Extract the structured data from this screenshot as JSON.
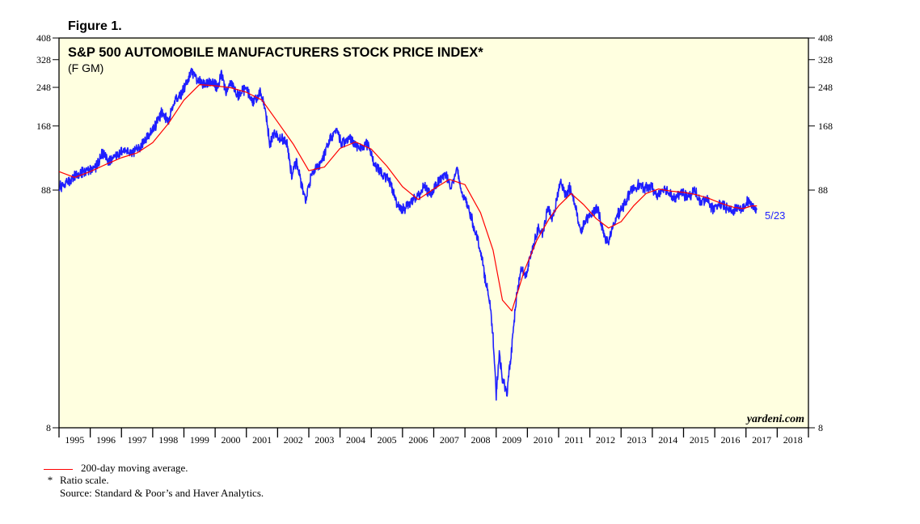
{
  "figure_label": "Figure 1.",
  "chart_data": {
    "type": "line",
    "title": "S&P 500 AUTOMOBILE MANUFACTURERS STOCK PRICE INDEX*",
    "subtitle": "(F GM)",
    "scale": "log",
    "ylim": [
      8,
      408
    ],
    "yticks": [
      8,
      88,
      168,
      248,
      328,
      408
    ],
    "ytick_labels": [
      "8",
      "88",
      "168",
      "248",
      "328",
      "408"
    ],
    "xlim": [
      1995,
      2019
    ],
    "xtick_labels": [
      "1995",
      "1996",
      "1997",
      "1998",
      "1999",
      "2000",
      "2001",
      "2002",
      "2003",
      "2004",
      "2005",
      "2006",
      "2007",
      "2008",
      "2009",
      "2010",
      "2011",
      "2012",
      "2013",
      "2014",
      "2015",
      "2016",
      "2017",
      "2018"
    ],
    "background": "#ffffe0",
    "series": [
      {
        "name": "S&P 500 Automobile Manufacturers Index",
        "color": "#1f1fff",
        "points": [
          [
            1995.0,
            90
          ],
          [
            1995.3,
            96
          ],
          [
            1995.6,
            103
          ],
          [
            1995.9,
            106
          ],
          [
            1996.2,
            112
          ],
          [
            1996.4,
            128
          ],
          [
            1996.6,
            117
          ],
          [
            1996.9,
            125
          ],
          [
            1997.1,
            134
          ],
          [
            1997.3,
            126
          ],
          [
            1997.6,
            136
          ],
          [
            1997.9,
            155
          ],
          [
            1998.1,
            170
          ],
          [
            1998.3,
            194
          ],
          [
            1998.5,
            176
          ],
          [
            1998.7,
            220
          ],
          [
            1998.9,
            232
          ],
          [
            1999.1,
            262
          ],
          [
            1999.25,
            292
          ],
          [
            1999.4,
            270
          ],
          [
            1999.6,
            258
          ],
          [
            1999.9,
            262
          ],
          [
            2000.1,
            244
          ],
          [
            2000.2,
            290
          ],
          [
            2000.35,
            236
          ],
          [
            2000.5,
            262
          ],
          [
            2000.75,
            228
          ],
          [
            2001.0,
            248
          ],
          [
            2001.2,
            212
          ],
          [
            2001.45,
            236
          ],
          [
            2001.6,
            205
          ],
          [
            2001.75,
            138
          ],
          [
            2001.9,
            158
          ],
          [
            2002.1,
            148
          ],
          [
            2002.3,
            144
          ],
          [
            2002.45,
            101
          ],
          [
            2002.6,
            118
          ],
          [
            2002.75,
            95
          ],
          [
            2002.9,
            80
          ],
          [
            2003.1,
            105
          ],
          [
            2003.3,
            112
          ],
          [
            2003.5,
            126
          ],
          [
            2003.7,
            148
          ],
          [
            2003.9,
            165
          ],
          [
            2004.05,
            138
          ],
          [
            2004.3,
            150
          ],
          [
            2004.6,
            135
          ],
          [
            2004.9,
            140
          ],
          [
            2005.1,
            115
          ],
          [
            2005.35,
            103
          ],
          [
            2005.6,
            96
          ],
          [
            2005.8,
            78
          ],
          [
            2006.0,
            72
          ],
          [
            2006.2,
            77
          ],
          [
            2006.45,
            81
          ],
          [
            2006.7,
            91
          ],
          [
            2006.9,
            84
          ],
          [
            2007.15,
            97
          ],
          [
            2007.4,
            104
          ],
          [
            2007.55,
            90
          ],
          [
            2007.75,
            108
          ],
          [
            2007.9,
            85
          ],
          [
            2008.1,
            75
          ],
          [
            2008.3,
            60
          ],
          [
            2008.5,
            48
          ],
          [
            2008.65,
            36
          ],
          [
            2008.8,
            28
          ],
          [
            2008.9,
            20
          ],
          [
            2009.0,
            11
          ],
          [
            2009.1,
            17
          ],
          [
            2009.2,
            13
          ],
          [
            2009.35,
            11.5
          ],
          [
            2009.5,
            18
          ],
          [
            2009.65,
            30
          ],
          [
            2009.8,
            40
          ],
          [
            2009.95,
            37
          ],
          [
            2010.15,
            48
          ],
          [
            2010.35,
            60
          ],
          [
            2010.5,
            56
          ],
          [
            2010.65,
            74
          ],
          [
            2010.8,
            65
          ],
          [
            2010.95,
            80
          ],
          [
            2011.05,
            98
          ],
          [
            2011.2,
            84
          ],
          [
            2011.35,
            90
          ],
          [
            2011.55,
            74
          ],
          [
            2011.7,
            57
          ],
          [
            2011.85,
            64
          ],
          [
            2012.05,
            69
          ],
          [
            2012.25,
            74
          ],
          [
            2012.45,
            56
          ],
          [
            2012.6,
            52
          ],
          [
            2012.8,
            64
          ],
          [
            2012.95,
            71
          ],
          [
            2013.15,
            78
          ],
          [
            2013.35,
            89
          ],
          [
            2013.55,
            93
          ],
          [
            2013.75,
            89
          ],
          [
            2013.95,
            92
          ],
          [
            2014.15,
            83
          ],
          [
            2014.35,
            89
          ],
          [
            2014.55,
            86
          ],
          [
            2014.75,
            81
          ],
          [
            2014.95,
            86
          ],
          [
            2015.15,
            81
          ],
          [
            2015.35,
            88
          ],
          [
            2015.55,
            77
          ],
          [
            2015.75,
            81
          ],
          [
            2015.95,
            72
          ],
          [
            2016.15,
            76
          ],
          [
            2016.35,
            74
          ],
          [
            2016.55,
            71
          ],
          [
            2016.75,
            74
          ],
          [
            2016.9,
            73
          ],
          [
            2017.05,
            79
          ],
          [
            2017.2,
            75
          ],
          [
            2017.35,
            72
          ]
        ]
      },
      {
        "name": "200-day moving average.",
        "color": "#ff0000",
        "points": [
          [
            1995.0,
            106
          ],
          [
            1995.5,
            100
          ],
          [
            1996.0,
            106
          ],
          [
            1996.5,
            114
          ],
          [
            1997.0,
            122
          ],
          [
            1997.5,
            128
          ],
          [
            1998.0,
            142
          ],
          [
            1998.5,
            172
          ],
          [
            1999.0,
            218
          ],
          [
            1999.5,
            255
          ],
          [
            2000.0,
            252
          ],
          [
            2000.5,
            247
          ],
          [
            2001.0,
            236
          ],
          [
            2001.5,
            218
          ],
          [
            2002.0,
            175
          ],
          [
            2002.5,
            140
          ],
          [
            2003.0,
            107
          ],
          [
            2003.5,
            111
          ],
          [
            2004.0,
            134
          ],
          [
            2004.5,
            143
          ],
          [
            2005.0,
            133
          ],
          [
            2005.5,
            112
          ],
          [
            2006.0,
            91
          ],
          [
            2006.5,
            80
          ],
          [
            2007.0,
            89
          ],
          [
            2007.5,
            98
          ],
          [
            2008.0,
            93
          ],
          [
            2008.5,
            70
          ],
          [
            2008.9,
            48
          ],
          [
            2009.2,
            29
          ],
          [
            2009.5,
            26
          ],
          [
            2009.9,
            39
          ],
          [
            2010.3,
            53
          ],
          [
            2010.7,
            66
          ],
          [
            2011.0,
            75
          ],
          [
            2011.4,
            85
          ],
          [
            2011.8,
            76
          ],
          [
            2012.2,
            66
          ],
          [
            2012.6,
            60
          ],
          [
            2013.0,
            64
          ],
          [
            2013.4,
            75
          ],
          [
            2013.8,
            85
          ],
          [
            2014.2,
            89
          ],
          [
            2014.6,
            87
          ],
          [
            2015.0,
            86
          ],
          [
            2015.4,
            84
          ],
          [
            2015.8,
            81
          ],
          [
            2016.2,
            77
          ],
          [
            2016.6,
            74
          ],
          [
            2016.9,
            73
          ],
          [
            2017.2,
            75
          ],
          [
            2017.35,
            75
          ]
        ]
      }
    ],
    "annotations": [
      {
        "text": "5/23"
      },
      {
        "text": "yardeni.com"
      }
    ],
    "legend": [
      {
        "text": "200-day moving average.",
        "color": "#ff0000"
      }
    ]
  },
  "footnotes": {
    "legend_label": "200-day moving average.",
    "star": "*",
    "ratio_note": "Ratio scale.",
    "source": "Source: Standard & Poor’s and Haver Analytics."
  }
}
